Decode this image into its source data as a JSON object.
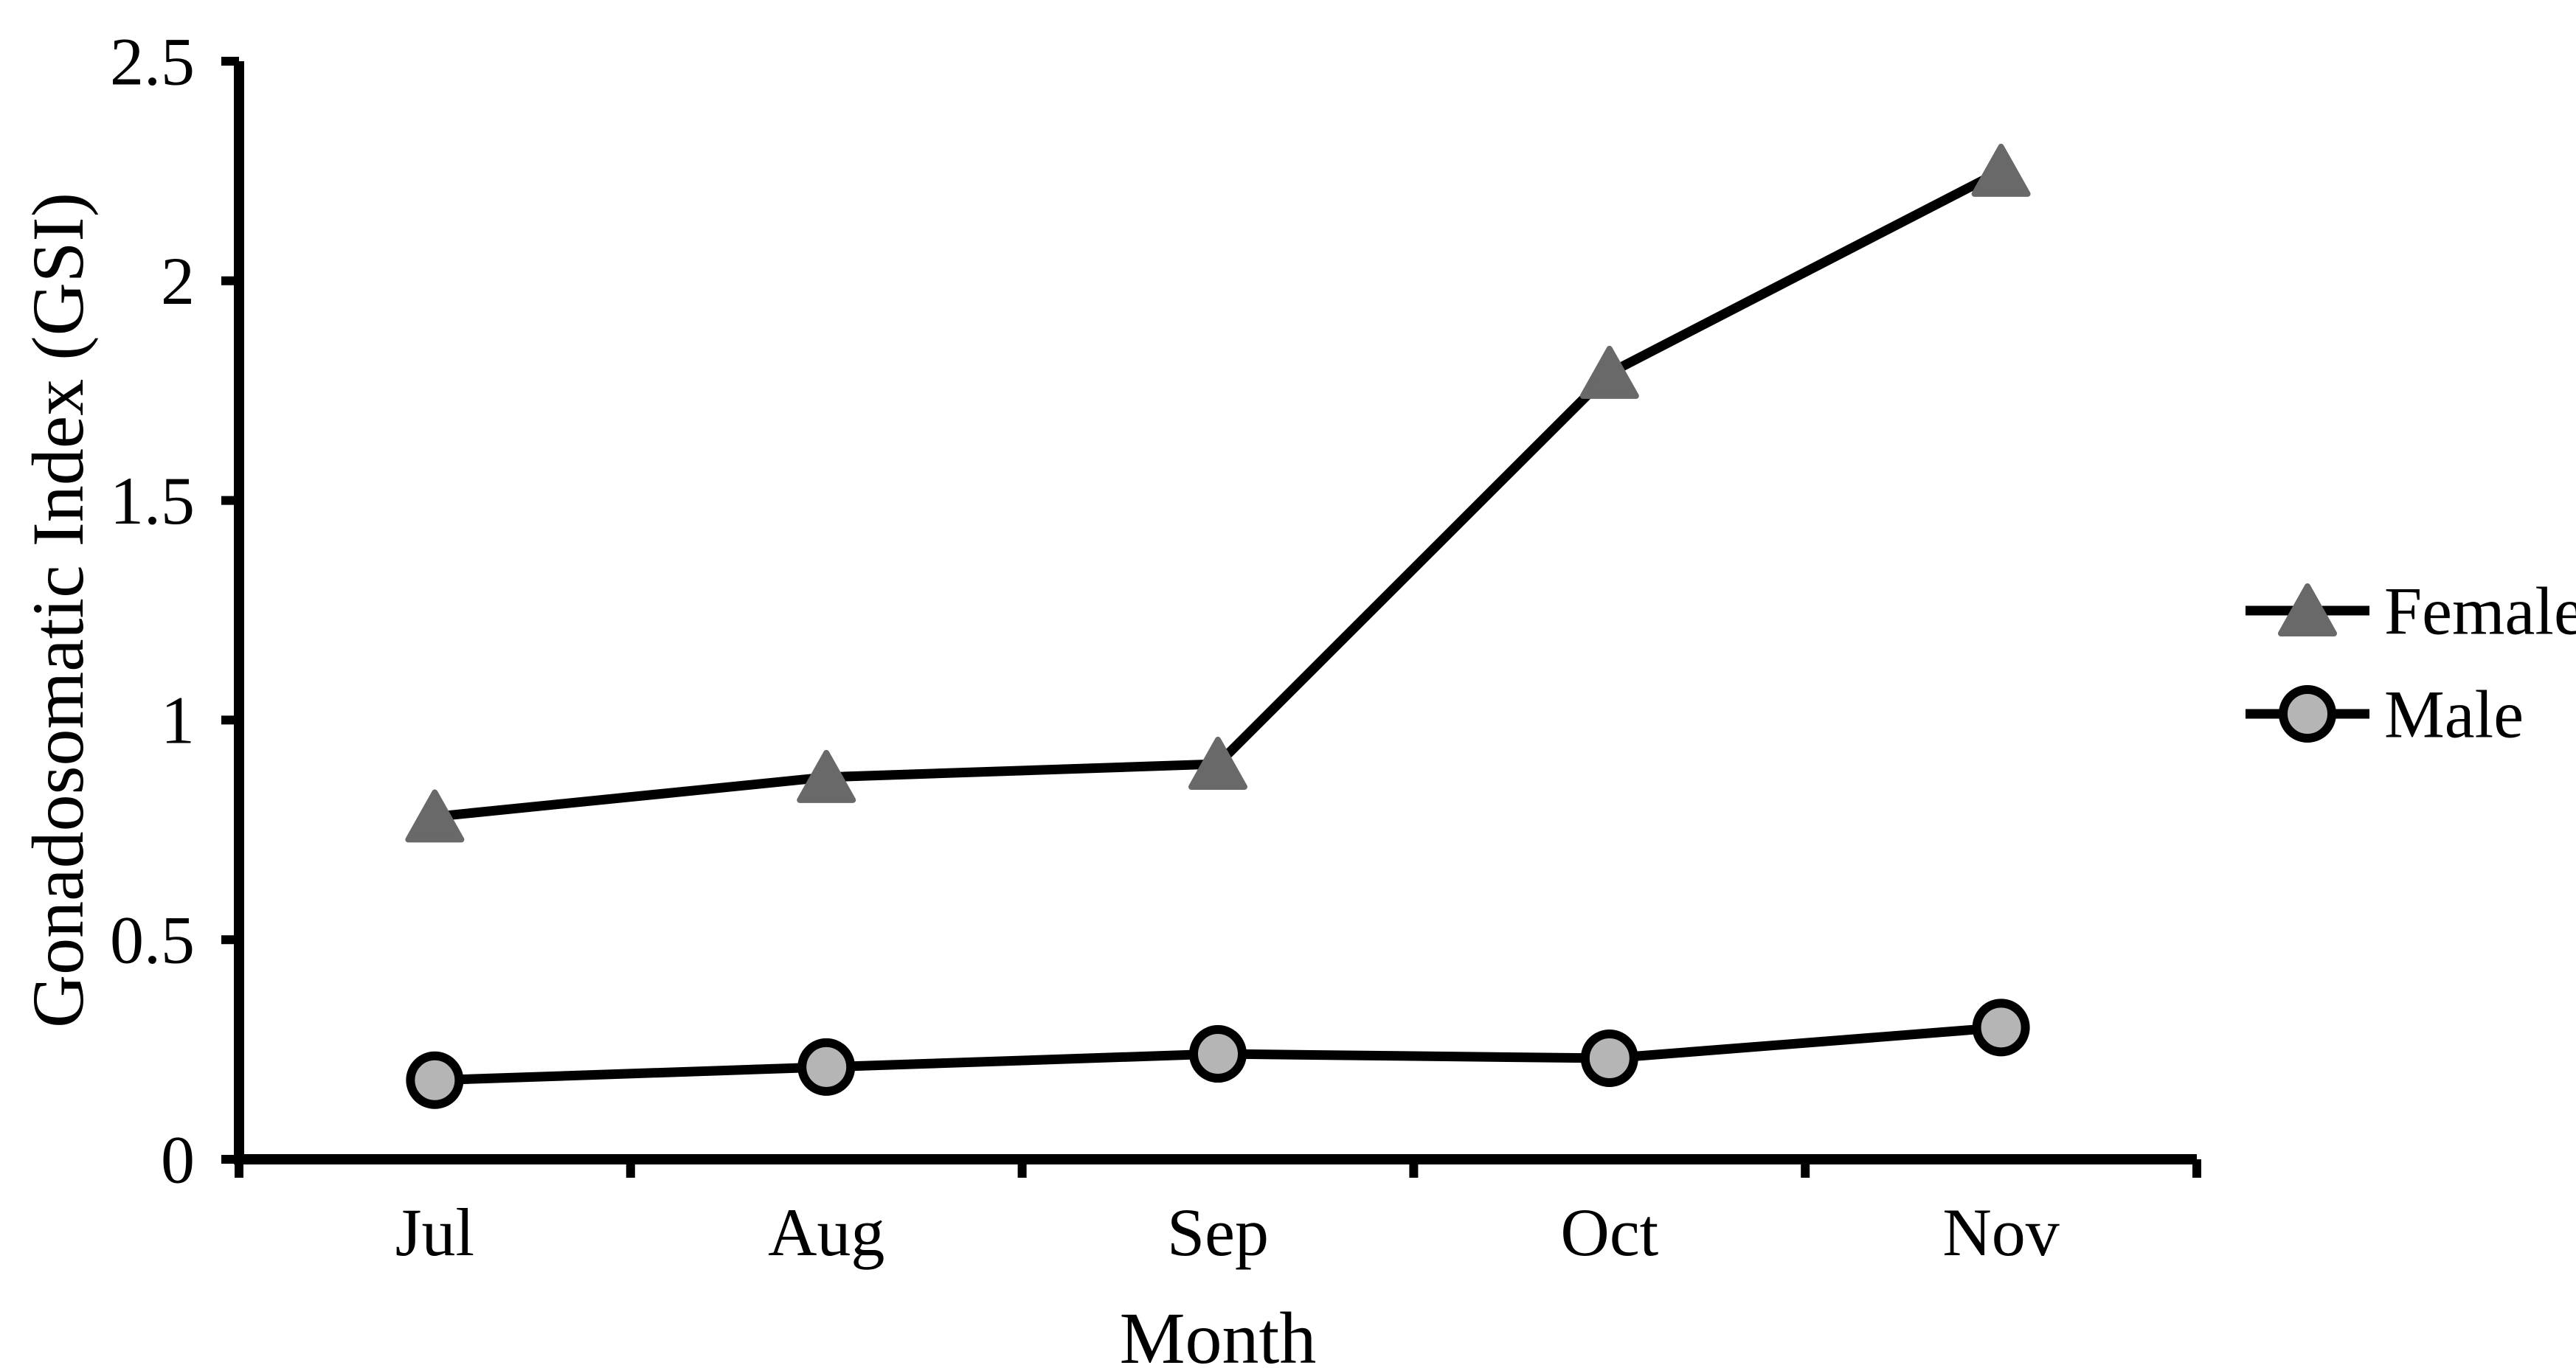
{
  "chart_data": {
    "type": "line",
    "title": "",
    "xlabel": "Month",
    "ylabel": "Gonadosomatic Index (GSI)",
    "categories": [
      "Jul",
      "Aug",
      "Sep",
      "Oct",
      "Nov"
    ],
    "series": [
      {
        "name": "Female",
        "marker": "triangle",
        "marker_color": "#696969",
        "line_color": "#000000",
        "values": [
          0.78,
          0.87,
          0.9,
          1.79,
          2.25
        ]
      },
      {
        "name": "Male",
        "marker": "circle",
        "marker_color": "#b5b5b5",
        "line_color": "#000000",
        "values": [
          0.18,
          0.21,
          0.24,
          0.23,
          0.3
        ]
      }
    ],
    "ylim": [
      0,
      2.5
    ],
    "yticks": [
      0,
      0.5,
      1,
      1.5,
      2,
      2.5
    ],
    "ytick_labels": [
      "0",
      "0.5",
      "1",
      "1.5",
      "2",
      "2.5"
    ],
    "grid": false,
    "legend_position": "right",
    "axis_color": "#000000",
    "background_color": "#ffffff"
  }
}
